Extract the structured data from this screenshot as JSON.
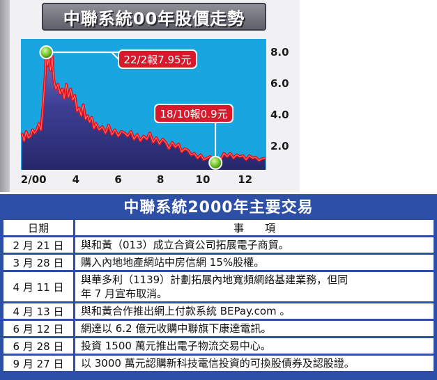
{
  "chart_title": "中聯系統00年股價走勢",
  "chart_data": {
    "type": "area",
    "title": "中聯系統00年股價走勢",
    "x_tick_labels": [
      "2/00",
      "4",
      "6",
      "8",
      "10",
      "12"
    ],
    "x_tick_months": [
      2,
      4,
      6,
      8,
      10,
      12
    ],
    "y_tick_labels": [
      "8.0",
      "6.0",
      "4.0",
      "2.0"
    ],
    "y_ticks": [
      8,
      6,
      4,
      2
    ],
    "xlim": [
      1.4,
      13.0
    ],
    "ylim": [
      0.45,
      8.8
    ],
    "series": [
      {
        "x": [
          1.45,
          1.55,
          1.65,
          1.75,
          1.85,
          1.95,
          2.05,
          2.15,
          2.25,
          2.35,
          2.45,
          2.55,
          2.6,
          2.65,
          2.72,
          2.8,
          2.88,
          2.95,
          3.05,
          3.15,
          3.25,
          3.35,
          3.45,
          3.55,
          3.65,
          3.75,
          3.85,
          3.95,
          4.05,
          4.15,
          4.25,
          4.35,
          4.45,
          4.55,
          4.65,
          4.75,
          4.85,
          4.95,
          5.1,
          5.25,
          5.4,
          5.55,
          5.7,
          5.85,
          6.0,
          6.15,
          6.3,
          6.45,
          6.6,
          6.75,
          6.9,
          7.05,
          7.2,
          7.35,
          7.5,
          7.65,
          7.8,
          7.95,
          8.1,
          8.25,
          8.4,
          8.55,
          8.7,
          8.85,
          9.0,
          9.15,
          9.3,
          9.45,
          9.6,
          9.75,
          9.9,
          10.05,
          10.2,
          10.35,
          10.5,
          10.6,
          10.7,
          10.8,
          10.9,
          11.0,
          11.15,
          11.3,
          11.45,
          11.6,
          11.75,
          11.9,
          12.05,
          12.2,
          12.35,
          12.5,
          12.65,
          12.8,
          12.95
        ],
        "values": [
          2.8,
          2.3,
          2.9,
          2.5,
          2.6,
          3.0,
          2.8,
          3.0,
          3.4,
          3.0,
          4.6,
          6.5,
          7.95,
          7.1,
          7.6,
          6.8,
          7.7,
          6.2,
          5.6,
          5.9,
          5.3,
          5.6,
          5.0,
          5.9,
          5.1,
          5.6,
          4.9,
          5.2,
          4.2,
          4.4,
          3.9,
          4.6,
          3.7,
          3.9,
          3.5,
          3.8,
          3.1,
          3.4,
          3.0,
          3.2,
          2.8,
          3.3,
          2.7,
          3.0,
          2.6,
          2.9,
          2.8,
          2.6,
          2.9,
          2.4,
          2.7,
          2.3,
          2.6,
          2.4,
          2.8,
          2.2,
          2.5,
          2.1,
          2.4,
          2.2,
          1.8,
          2.2,
          1.9,
          2.1,
          1.6,
          1.8,
          1.7,
          1.4,
          1.5,
          1.2,
          1.4,
          1.1,
          1.2,
          1.3,
          0.95,
          1.05,
          0.9,
          1.1,
          1.25,
          1.5,
          1.3,
          1.5,
          1.2,
          1.4,
          1.3,
          1.35,
          1.1,
          1.35,
          1.2,
          1.25,
          1.05,
          1.15,
          1.2
        ]
      }
    ],
    "annotations": [
      {
        "text": "22/2報7.95元",
        "x": 2.6,
        "y": 7.95
      },
      {
        "text": "18/10報0.9元",
        "x": 10.6,
        "y": 0.9
      }
    ],
    "colors": {
      "fill": "#34357f",
      "fill_light": "#6e78c8",
      "line": "#e0101a",
      "marker": "#72c52a",
      "callout": "#d8182b",
      "plot_bg": "#19a5e0"
    }
  },
  "table_title": "中聯系統2000年主要交易",
  "table_headers": {
    "date": "日期",
    "event": "事　　項"
  },
  "events": [
    {
      "date": "2 月 21 日",
      "event": "與和黃（013）成立合資公司拓展電子商貿。"
    },
    {
      "date": "3 月 28 日",
      "event": "購入內地地產網站中房信網 15%股權。"
    },
    {
      "date": "4 月 11 日",
      "event": "與華多利（1139）計劃拓展內地寬頻網絡基建業務，但同",
      "event2": "年 7 月宣布取消。"
    },
    {
      "date": "4 月 13 日",
      "event": "與和黃合作推出網上付款系統 BEPay.com 。"
    },
    {
      "date": "6 月 12 日",
      "event": "網達以 6.2 億元收購中聯旗下康達電訊。"
    },
    {
      "date": "6 月 28 日",
      "event": "投資 1500 萬元推出電子物流交易中心。"
    },
    {
      "date": "9 月 27 日",
      "event": "以 3000 萬元認購新科技電信投資的可換股債券及認股證。"
    }
  ]
}
